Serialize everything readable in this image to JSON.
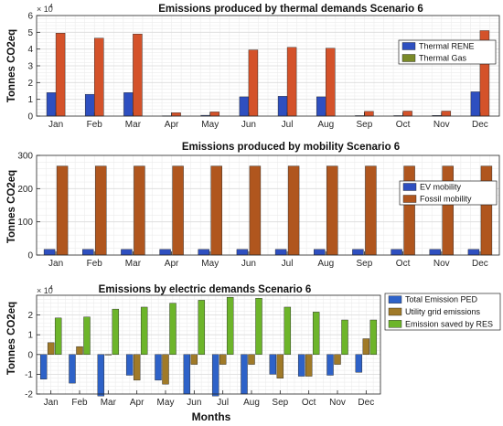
{
  "figure": {
    "xlabel": "Months"
  },
  "chart_data": [
    {
      "type": "bar",
      "title": "Emissions produced by thermal demands Scenario 6",
      "ylabel": "Tonnes CO2eq",
      "exponent_label": "× 10",
      "exponent_value": "4",
      "categories": [
        "Jan",
        "Feb",
        "Mar",
        "Apr",
        "May",
        "Jun",
        "Jul",
        "Aug",
        "Sep",
        "Oct",
        "Nov",
        "Dec"
      ],
      "ylim": [
        0,
        60000
      ],
      "yticks": [
        0,
        10000,
        20000,
        30000,
        40000,
        50000,
        60000
      ],
      "ytick_labels": [
        "0",
        "1",
        "2",
        "3",
        "4",
        "5",
        "6"
      ],
      "grid": true,
      "legend_position": "top-right",
      "series": [
        {
          "name": "Thermal RENE",
          "color": "#2E4FC0",
          "values": [
            14000,
            13000,
            14000,
            200,
            500,
            11500,
            11800,
            11500,
            300,
            300,
            400,
            14500
          ]
        },
        {
          "name": "Thermal Gas",
          "color": "#7A8A28",
          "values": null
        },
        {
          "name": "",
          "color": "#D4522A",
          "values": [
            49500,
            46500,
            49000,
            2000,
            2500,
            39500,
            41000,
            40500,
            2800,
            3000,
            3000,
            51000
          ]
        }
      ]
    },
    {
      "type": "bar",
      "title": "Emissions produced by mobility Scenario 6",
      "ylabel": "Tonnes CO2eq",
      "categories": [
        "Jan",
        "Feb",
        "Mar",
        "Apr",
        "May",
        "Jun",
        "Jul",
        "Aug",
        "Sep",
        "Oct",
        "Nov",
        "Dec"
      ],
      "ylim": [
        0,
        300
      ],
      "yticks": [
        0,
        100,
        200,
        300
      ],
      "ytick_labels": [
        "0",
        "100",
        "200",
        "300"
      ],
      "grid": true,
      "legend_position": "right",
      "series": [
        {
          "name": "EV mobility",
          "color": "#2E4FC0",
          "values": [
            17,
            17,
            17,
            17,
            17,
            17,
            17,
            17,
            17,
            17,
            17,
            17
          ]
        },
        {
          "name": "Fossil mobility",
          "color": "#B0561E",
          "values": [
            268,
            268,
            268,
            268,
            268,
            268,
            268,
            268,
            268,
            268,
            268,
            268
          ]
        }
      ]
    },
    {
      "type": "bar",
      "title": "Emissions by electric demands Scenario 6",
      "ylabel": "Tonnes CO2eq",
      "xlabel": "Months",
      "exponent_label": "× 10",
      "exponent_value": "4",
      "categories": [
        "Jan",
        "Feb",
        "Mar",
        "Apr",
        "May",
        "Jun",
        "Jul",
        "Aug",
        "Sep",
        "Oct",
        "Nov",
        "Dec"
      ],
      "ylim": [
        -20000,
        30000
      ],
      "yticks": [
        -20000,
        -10000,
        0,
        10000,
        20000
      ],
      "ytick_labels": [
        "-2",
        "-1",
        "0",
        "1",
        "2"
      ],
      "grid": true,
      "legend_position": "outside-right",
      "series": [
        {
          "name": "Total Emission PED",
          "color": "#2E62C8",
          "values": [
            -12500,
            -14500,
            -21000,
            -10500,
            -13000,
            -20000,
            -21000,
            -20000,
            -10000,
            -11000,
            -10500,
            -9000
          ]
        },
        {
          "name": "Utility grid emissions",
          "color": "#A07A28",
          "values": [
            6000,
            4000,
            0,
            -13000,
            -15000,
            -5000,
            -5000,
            -5000,
            -12000,
            -11000,
            -5000,
            8000
          ]
        },
        {
          "name": "Emission saved by RES",
          "color": "#6DB52A",
          "values": [
            18500,
            19000,
            23000,
            24000,
            26000,
            27500,
            29000,
            28500,
            24000,
            21500,
            17500,
            17500
          ]
        }
      ]
    }
  ]
}
